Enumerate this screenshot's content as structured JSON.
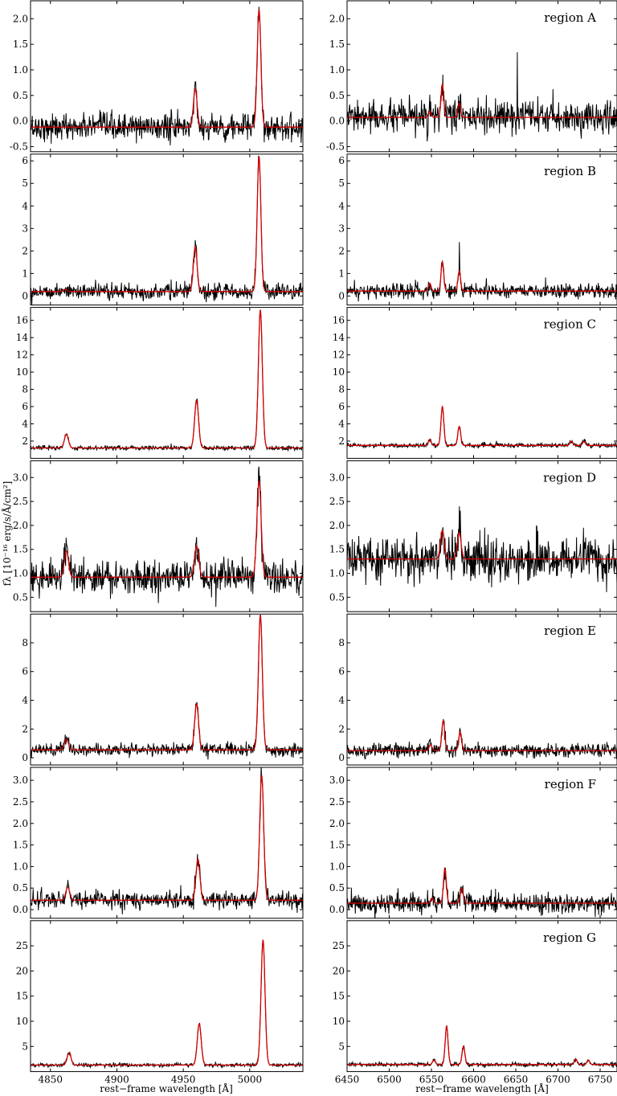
{
  "figure": {
    "ylabel": "fλ [10⁻¹⁶ erg/s/Å/cm²]",
    "xlabel_left": "rest−frame wavelength [Å]",
    "xlabel_right": "rest−frame wavelength [Å]"
  },
  "chart_data": [
    {
      "type": "line",
      "region": "A",
      "side": "left",
      "label": "",
      "xlim": [
        4835,
        5040
      ],
      "ylim": [
        -0.6,
        2.35
      ],
      "yticks": [
        -0.5,
        0.0,
        0.5,
        1.0,
        1.5,
        2.0
      ],
      "ytick_labels": [
        "-0.5",
        "0.0",
        "0.5",
        "1.0",
        "1.5",
        "2.0"
      ],
      "continuum": -0.12,
      "noise": 0.13,
      "lines": [
        {
          "x": 4959,
          "amp": 0.75,
          "w": 1.4
        },
        {
          "x": 5007,
          "amp": 2.3,
          "w": 1.4
        }
      ]
    },
    {
      "type": "line",
      "region": "A",
      "side": "right",
      "label": "region A",
      "xlim": [
        6450,
        6770
      ],
      "ylim": [
        -0.6,
        2.35
      ],
      "yticks": [
        -0.5,
        0.0,
        0.5,
        1.0,
        1.5,
        2.0
      ],
      "ytick_labels": [
        "-0.5",
        "0.0",
        "0.5",
        "1.0",
        "1.5",
        "2.0"
      ],
      "continuum": 0.07,
      "noise": 0.15,
      "lines": [
        {
          "x": 6548,
          "amp": 0.12,
          "w": 1.6
        },
        {
          "x": 6563,
          "amp": 0.65,
          "w": 1.6
        },
        {
          "x": 6583,
          "amp": 0.28,
          "w": 1.6
        }
      ],
      "spikes": [
        {
          "x": 6652,
          "amp": 1.35
        }
      ]
    },
    {
      "type": "line",
      "region": "B",
      "side": "left",
      "label": "",
      "xlim": [
        4835,
        5040
      ],
      "ylim": [
        -0.4,
        6.3
      ],
      "yticks": [
        0,
        1,
        2,
        3,
        4,
        5,
        6
      ],
      "ytick_labels": [
        "0",
        "1",
        "2",
        "3",
        "4",
        "5",
        "6"
      ],
      "continuum": 0.2,
      "noise": 0.17,
      "lines": [
        {
          "x": 4861,
          "amp": 0.1,
          "w": 1.4
        },
        {
          "x": 4959,
          "amp": 2.0,
          "w": 1.4
        },
        {
          "x": 5007,
          "amp": 6.0,
          "w": 1.4
        }
      ]
    },
    {
      "type": "line",
      "region": "B",
      "side": "right",
      "label": "region B",
      "xlim": [
        6450,
        6770
      ],
      "ylim": [
        -0.4,
        6.3
      ],
      "yticks": [
        0,
        1,
        2,
        3,
        4,
        5,
        6
      ],
      "ytick_labels": [
        "0",
        "1",
        "2",
        "3",
        "4",
        "5",
        "6"
      ],
      "continuum": 0.22,
      "noise": 0.17,
      "lines": [
        {
          "x": 6548,
          "amp": 0.35,
          "w": 1.6
        },
        {
          "x": 6563,
          "amp": 1.3,
          "w": 1.6
        },
        {
          "x": 6583,
          "amp": 0.9,
          "w": 1.6
        }
      ],
      "spikes": [
        {
          "x": 6583,
          "amp": 1.4
        }
      ]
    },
    {
      "type": "line",
      "region": "C",
      "side": "left",
      "label": "",
      "xlim": [
        4835,
        5040
      ],
      "ylim": [
        0.0,
        17.5
      ],
      "yticks": [
        2,
        4,
        6,
        8,
        10,
        12,
        14,
        16
      ],
      "ytick_labels": [
        "2",
        "4",
        "6",
        "8",
        "10",
        "12",
        "14",
        "16"
      ],
      "continuum": 1.2,
      "noise": 0.13,
      "lines": [
        {
          "x": 4862,
          "amp": 1.6,
          "w": 1.5
        },
        {
          "x": 4960,
          "amp": 5.5,
          "w": 1.5
        },
        {
          "x": 5008,
          "amp": 16.0,
          "w": 1.5
        }
      ]
    },
    {
      "type": "line",
      "region": "C",
      "side": "right",
      "label": "region C",
      "xlim": [
        6450,
        6770
      ],
      "ylim": [
        0.0,
        17.5
      ],
      "yticks": [
        2,
        4,
        6,
        8,
        10,
        12,
        14,
        16
      ],
      "ytick_labels": [
        "2",
        "4",
        "6",
        "8",
        "10",
        "12",
        "14",
        "16"
      ],
      "continuum": 1.5,
      "noise": 0.13,
      "lines": [
        {
          "x": 6548,
          "amp": 0.7,
          "w": 1.7
        },
        {
          "x": 6563,
          "amp": 4.5,
          "w": 1.7
        },
        {
          "x": 6583,
          "amp": 2.2,
          "w": 1.7
        },
        {
          "x": 6716,
          "amp": 0.5,
          "w": 1.7
        },
        {
          "x": 6731,
          "amp": 0.45,
          "w": 1.7
        }
      ]
    },
    {
      "type": "line",
      "region": "D",
      "side": "left",
      "label": "",
      "xlim": [
        4835,
        5040
      ],
      "ylim": [
        0.2,
        3.35
      ],
      "yticks": [
        0.5,
        1.0,
        1.5,
        2.0,
        2.5,
        3.0
      ],
      "ytick_labels": [
        "0.5",
        "1.0",
        "1.5",
        "2.0",
        "2.5",
        "3.0"
      ],
      "continuum": 0.92,
      "noise": 0.18,
      "lines": [
        {
          "x": 4862,
          "amp": 0.55,
          "w": 1.6
        },
        {
          "x": 4960,
          "amp": 0.65,
          "w": 1.6
        },
        {
          "x": 5007,
          "amp": 2.0,
          "w": 1.6
        }
      ]
    },
    {
      "type": "line",
      "region": "D",
      "side": "right",
      "label": "region D",
      "xlim": [
        6450,
        6770
      ],
      "ylim": [
        0.2,
        3.35
      ],
      "yticks": [
        0.5,
        1.0,
        1.5,
        2.0,
        2.5,
        3.0
      ],
      "ytick_labels": [
        "0.5",
        "1.0",
        "1.5",
        "2.0",
        "2.5",
        "3.0"
      ],
      "continuum": 1.3,
      "noise": 0.22,
      "lines": [
        {
          "x": 6563,
          "amp": 0.6,
          "w": 2.2
        },
        {
          "x": 6583,
          "amp": 0.55,
          "w": 2.2
        }
      ],
      "spikes": [
        {
          "x": 6583,
          "amp": 0.8
        }
      ]
    },
    {
      "type": "line",
      "region": "E",
      "side": "left",
      "label": "",
      "xlim": [
        4835,
        5040
      ],
      "ylim": [
        -0.5,
        10.0
      ],
      "yticks": [
        0,
        2,
        4,
        6,
        8
      ],
      "ytick_labels": [
        "0",
        "2",
        "4",
        "6",
        "8"
      ],
      "continuum": 0.55,
      "noise": 0.22,
      "lines": [
        {
          "x": 4862,
          "amp": 0.75,
          "w": 1.5
        },
        {
          "x": 4960,
          "amp": 3.2,
          "w": 1.5
        },
        {
          "x": 5008,
          "amp": 9.4,
          "w": 1.5
        }
      ]
    },
    {
      "type": "line",
      "region": "E",
      "side": "right",
      "label": "region E",
      "xlim": [
        6450,
        6770
      ],
      "ylim": [
        -0.5,
        10.0
      ],
      "yticks": [
        0,
        2,
        4,
        6,
        8
      ],
      "ytick_labels": [
        "0",
        "2",
        "4",
        "6",
        "8"
      ],
      "continuum": 0.5,
      "noise": 0.24,
      "lines": [
        {
          "x": 6549,
          "amp": 0.4,
          "w": 1.7
        },
        {
          "x": 6564,
          "amp": 2.1,
          "w": 1.7
        },
        {
          "x": 6584,
          "amp": 1.3,
          "w": 1.7
        }
      ]
    },
    {
      "type": "line",
      "region": "F",
      "side": "left",
      "label": "",
      "xlim": [
        4835,
        5040
      ],
      "ylim": [
        -0.2,
        3.3
      ],
      "yticks": [
        0.0,
        0.5,
        1.0,
        1.5,
        2.0,
        2.5,
        3.0
      ],
      "ytick_labels": [
        "0.0",
        "0.5",
        "1.0",
        "1.5",
        "2.0",
        "2.5",
        "3.0"
      ],
      "continuum": 0.22,
      "noise": 0.1,
      "lines": [
        {
          "x": 4863,
          "amp": 0.3,
          "w": 1.5
        },
        {
          "x": 4961,
          "amp": 0.95,
          "w": 1.5
        },
        {
          "x": 5009,
          "amp": 2.9,
          "w": 1.5
        }
      ]
    },
    {
      "type": "line",
      "region": "F",
      "side": "right",
      "label": "region F",
      "xlim": [
        6450,
        6770
      ],
      "ylim": [
        -0.2,
        3.3
      ],
      "yticks": [
        0.0,
        0.5,
        1.0,
        1.5,
        2.0,
        2.5,
        3.0
      ],
      "ytick_labels": [
        "0.0",
        "0.5",
        "1.0",
        "1.5",
        "2.0",
        "2.5",
        "3.0"
      ],
      "continuum": 0.15,
      "noise": 0.12,
      "lines": [
        {
          "x": 6551,
          "amp": 0.12,
          "w": 1.7
        },
        {
          "x": 6566,
          "amp": 0.8,
          "w": 1.7
        },
        {
          "x": 6586,
          "amp": 0.35,
          "w": 1.7
        }
      ]
    },
    {
      "type": "line",
      "region": "G",
      "side": "left",
      "label": "",
      "xlim": [
        4835,
        5040
      ],
      "ylim": [
        0.0,
        30.0
      ],
      "yticks": [
        5,
        10,
        15,
        20,
        25
      ],
      "ytick_labels": [
        "5",
        "10",
        "15",
        "20",
        "25"
      ],
      "continuum": 1.3,
      "noise": 0.18,
      "lines": [
        {
          "x": 4864,
          "amp": 2.4,
          "w": 1.5
        },
        {
          "x": 4962,
          "amp": 8.2,
          "w": 1.5
        },
        {
          "x": 5010,
          "amp": 24.8,
          "w": 1.5
        }
      ]
    },
    {
      "type": "line",
      "region": "G",
      "side": "right",
      "label": "region G",
      "xlim": [
        6450,
        6770
      ],
      "ylim": [
        0.0,
        30.0
      ],
      "yticks": [
        5,
        10,
        15,
        20,
        25
      ],
      "ytick_labels": [
        "5",
        "10",
        "15",
        "20",
        "25"
      ],
      "continuum": 1.4,
      "noise": 0.2,
      "lines": [
        {
          "x": 6553,
          "amp": 0.9,
          "w": 1.7
        },
        {
          "x": 6568,
          "amp": 7.6,
          "w": 1.7
        },
        {
          "x": 6588,
          "amp": 3.6,
          "w": 1.7
        },
        {
          "x": 6721,
          "amp": 1.1,
          "w": 1.7
        },
        {
          "x": 6736,
          "amp": 0.9,
          "w": 1.7
        }
      ]
    }
  ],
  "xaxis_left": {
    "ticks": [
      4850,
      4900,
      4950,
      5000
    ],
    "tick_labels": [
      "4850",
      "4900",
      "4950",
      "5000"
    ]
  },
  "xaxis_right": {
    "ticks": [
      6450,
      6500,
      6550,
      6600,
      6650,
      6700,
      6750
    ],
    "tick_labels": [
      "6450",
      "6500",
      "6550",
      "6600",
      "6650",
      "6700",
      "6750"
    ]
  },
  "colors": {
    "data": "#000000",
    "model": "#d40000",
    "frame": "#000000"
  }
}
